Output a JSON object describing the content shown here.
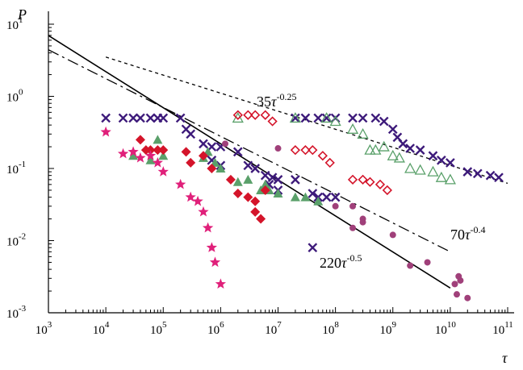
{
  "chart_data": {
    "type": "scatter",
    "ylabel": "P",
    "xlabel": "τ",
    "xscale": "log",
    "yscale": "log",
    "xlim": [
      1000,
      100000000000
    ],
    "ylim": [
      0.001,
      10
    ],
    "x_ticks": [
      {
        "base": "10",
        "exp": "3"
      },
      {
        "base": "10",
        "exp": "4"
      },
      {
        "base": "10",
        "exp": "5"
      },
      {
        "base": "10",
        "exp": "6"
      },
      {
        "base": "10",
        "exp": "7"
      },
      {
        "base": "10",
        "exp": "8"
      },
      {
        "base": "10",
        "exp": "9"
      },
      {
        "base": "10",
        "exp": "10"
      },
      {
        "base": "10",
        "exp": "11"
      }
    ],
    "y_ticks": [
      {
        "base": "10",
        "exp": "-3"
      },
      {
        "base": "10",
        "exp": "-2"
      },
      {
        "base": "10",
        "exp": "-1"
      },
      {
        "base": "10",
        "exp": "0"
      },
      {
        "base": "10",
        "exp": "1"
      }
    ],
    "fit_lines": [
      {
        "coef": "35",
        "var": "τ",
        "exp": "-0.25",
        "style": "dashed",
        "a": 35,
        "b": -0.25,
        "x": [
          10000,
          100000000000
        ]
      },
      {
        "coef": "70",
        "var": "τ",
        "exp": "-0.4",
        "style": "dash-dot",
        "a": 70,
        "b": -0.4,
        "x": [
          1000,
          10000000000
        ]
      },
      {
        "coef": "220",
        "var": "τ",
        "exp": "-0.5",
        "style": "solid",
        "a": 220,
        "b": -0.5,
        "x": [
          1000,
          10000000000
        ]
      }
    ],
    "series": [
      {
        "marker": "cross",
        "color": "#3d1a7a",
        "points": [
          [
            10000,
            0.5
          ],
          [
            20000,
            0.5
          ],
          [
            30000,
            0.5
          ],
          [
            40000,
            0.5
          ],
          [
            60000,
            0.5
          ],
          [
            80000,
            0.5
          ],
          [
            100000,
            0.5
          ],
          [
            200000,
            0.5
          ],
          [
            250000,
            0.35
          ],
          [
            300000,
            0.3
          ],
          [
            500000,
            0.22
          ],
          [
            700000,
            0.2
          ],
          [
            1000000,
            0.2
          ],
          [
            700000,
            0.13
          ],
          [
            1000000,
            0.11
          ],
          [
            2000000,
            0.17
          ],
          [
            3000000,
            0.11
          ],
          [
            4000000,
            0.1
          ],
          [
            6000000,
            0.08
          ],
          [
            7000000,
            0.06
          ],
          [
            8000000,
            0.075
          ],
          [
            10000000,
            0.07
          ],
          [
            10000000,
            0.05
          ],
          [
            20000000,
            0.07
          ],
          [
            40000000,
            0.045
          ],
          [
            50000000,
            0.04
          ],
          [
            70000000,
            0.04
          ],
          [
            100000000,
            0.04
          ],
          [
            20000000,
            0.5
          ],
          [
            30000000,
            0.5
          ],
          [
            50000000,
            0.5
          ],
          [
            70000000,
            0.5
          ],
          [
            100000000,
            0.5
          ],
          [
            200000000,
            0.5
          ],
          [
            300000000,
            0.5
          ],
          [
            500000000,
            0.5
          ],
          [
            700000000,
            0.45
          ],
          [
            1000000000,
            0.35
          ],
          [
            1200000000,
            0.27
          ],
          [
            1500000000,
            0.22
          ],
          [
            2000000000,
            0.19
          ],
          [
            3000000000,
            0.18
          ],
          [
            5000000000,
            0.15
          ],
          [
            7000000000,
            0.13
          ],
          [
            10000000000,
            0.12
          ],
          [
            20000000000,
            0.09
          ],
          [
            30000000000,
            0.085
          ],
          [
            50000000000,
            0.08
          ],
          [
            70000000000,
            0.075
          ],
          [
            40000000,
            0.008
          ]
        ]
      },
      {
        "marker": "triangle-filled",
        "color": "#5aa06a",
        "points": [
          [
            30000,
            0.15
          ],
          [
            60000,
            0.13
          ],
          [
            80000,
            0.25
          ],
          [
            100000,
            0.15
          ],
          [
            500000,
            0.14
          ],
          [
            600000,
            0.17
          ],
          [
            800000,
            0.12
          ],
          [
            1000000,
            0.1
          ],
          [
            2000000,
            0.065
          ],
          [
            3000000,
            0.07
          ],
          [
            5000000,
            0.05
          ],
          [
            6000000,
            0.06
          ],
          [
            7000000,
            0.05
          ],
          [
            10000000,
            0.045
          ],
          [
            20000000,
            0.04
          ],
          [
            30000000,
            0.04
          ],
          [
            50000000,
            0.035
          ]
        ]
      },
      {
        "marker": "triangle-open",
        "color": "#5aa06a",
        "points": [
          [
            2000000,
            0.5
          ],
          [
            20000000,
            0.5
          ],
          [
            70000000,
            0.5
          ],
          [
            100000000,
            0.45
          ],
          [
            200000000,
            0.35
          ],
          [
            300000000,
            0.3
          ],
          [
            400000000,
            0.18
          ],
          [
            500000000,
            0.18
          ],
          [
            700000000,
            0.2
          ],
          [
            1000000000,
            0.15
          ],
          [
            1300000000,
            0.14
          ],
          [
            2000000000,
            0.1
          ],
          [
            3000000000,
            0.095
          ],
          [
            5000000000,
            0.09
          ],
          [
            7000000000,
            0.075
          ],
          [
            10000000000,
            0.07
          ]
        ]
      },
      {
        "marker": "diamond-filled",
        "color": "#d4142a",
        "points": [
          [
            40000,
            0.25
          ],
          [
            50000,
            0.18
          ],
          [
            60000,
            0.18
          ],
          [
            80000,
            0.18
          ],
          [
            100000,
            0.18
          ],
          [
            250000,
            0.17
          ],
          [
            300000,
            0.12
          ],
          [
            500000,
            0.15
          ],
          [
            700000,
            0.1
          ],
          [
            1500000,
            0.07
          ],
          [
            2000000,
            0.045
          ],
          [
            3000000,
            0.04
          ],
          [
            4000000,
            0.035
          ],
          [
            6000000,
            0.05
          ],
          [
            4000000,
            0.025
          ],
          [
            5000000,
            0.02
          ]
        ]
      },
      {
        "marker": "diamond-open",
        "color": "#d4142a",
        "points": [
          [
            2000000,
            0.55
          ],
          [
            3000000,
            0.55
          ],
          [
            4000000,
            0.55
          ],
          [
            6000000,
            0.55
          ],
          [
            8000000,
            0.45
          ],
          [
            20000000,
            0.18
          ],
          [
            30000000,
            0.18
          ],
          [
            40000000,
            0.18
          ],
          [
            60000000,
            0.15
          ],
          [
            80000000,
            0.12
          ],
          [
            200000000,
            0.07
          ],
          [
            300000000,
            0.07
          ],
          [
            400000000,
            0.065
          ],
          [
            600000000,
            0.06
          ],
          [
            800000000,
            0.05
          ]
        ]
      },
      {
        "marker": "circle",
        "color": "#a0407a",
        "points": [
          [
            1200000,
            0.22
          ],
          [
            10000000,
            0.19
          ],
          [
            100000000,
            0.03
          ],
          [
            200000000,
            0.03
          ],
          [
            300000000,
            0.02
          ],
          [
            300000000,
            0.018
          ],
          [
            200000000,
            0.015
          ],
          [
            1000000000,
            0.012
          ],
          [
            2000000000,
            0.0045
          ],
          [
            4000000000,
            0.005
          ],
          [
            12000000000,
            0.0025
          ],
          [
            13000000000,
            0.0018
          ],
          [
            15000000000,
            0.0028
          ],
          [
            14000000000,
            0.0032
          ],
          [
            20000000000,
            0.0016
          ]
        ]
      },
      {
        "marker": "star",
        "color": "#e0207a",
        "points": [
          [
            10000,
            0.32
          ],
          [
            20000,
            0.16
          ],
          [
            30000,
            0.17
          ],
          [
            40000,
            0.14
          ],
          [
            60000,
            0.15
          ],
          [
            80000,
            0.12
          ],
          [
            100000,
            0.09
          ],
          [
            200000,
            0.06
          ],
          [
            300000,
            0.04
          ],
          [
            400000,
            0.035
          ],
          [
            500000,
            0.025
          ],
          [
            600000,
            0.015
          ],
          [
            700000,
            0.008
          ],
          [
            800000,
            0.005
          ],
          [
            1000000,
            0.0025
          ]
        ]
      }
    ]
  }
}
